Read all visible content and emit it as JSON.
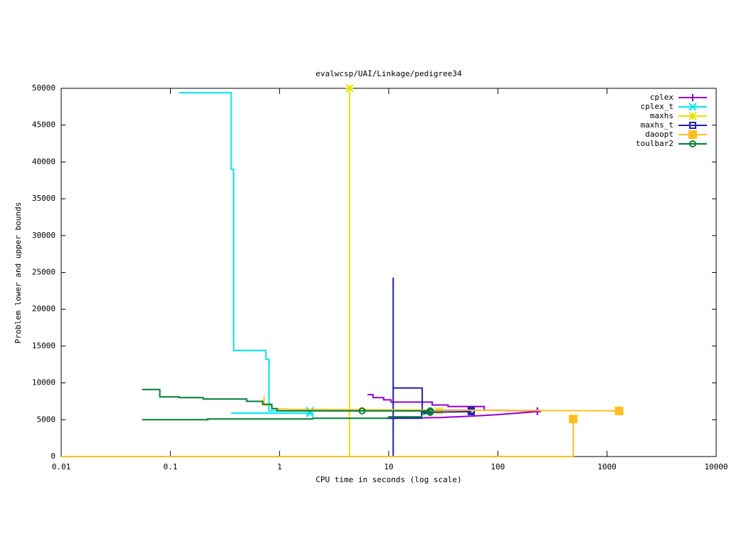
{
  "chart_data": {
    "type": "line",
    "title": "evalwcsp/UAI/Linkage/pedigree34",
    "xlabel": "CPU time in seconds (log scale)",
    "ylabel": "Problem lower and upper bounds",
    "xscale": "log",
    "xlim": [
      0.01,
      10000
    ],
    "xticks": [
      0.01,
      0.1,
      1,
      10,
      100,
      1000,
      10000
    ],
    "ylim": [
      0,
      50000
    ],
    "yticks": [
      0,
      5000,
      10000,
      15000,
      20000,
      25000,
      30000,
      35000,
      40000,
      45000,
      50000
    ],
    "legend": "top-right",
    "series": [
      {
        "name": "cplex",
        "color": "#9400d3",
        "point": "plus",
        "x": [
          6.4,
          6.4,
          7.2,
          7.2,
          9,
          9,
          10.5,
          10.5,
          25,
          25,
          35,
          35,
          75,
          75,
          230,
          null,
          10,
          30,
          60,
          100,
          230
        ],
        "values": [
          8400,
          8400,
          8400,
          8000,
          8000,
          7700,
          7700,
          7400,
          7400,
          7000,
          7000,
          6800,
          6800,
          6300,
          6200,
          null,
          5200,
          5300,
          5500,
          5700,
          6100
        ]
      },
      {
        "name": "cplex_t",
        "color": "#00e5ee",
        "point": "cross",
        "x": [
          0.12,
          0.36,
          0.36,
          0.38,
          0.38,
          0.75,
          0.75,
          0.8,
          0.8,
          1.9,
          null,
          0.36,
          1.9
        ],
        "values": [
          49400,
          49400,
          39000,
          39000,
          14400,
          14400,
          13200,
          13200,
          6200,
          6200,
          null,
          5900,
          5900
        ]
      },
      {
        "name": "maxhs",
        "color": "#e5e500",
        "point": "star",
        "x": [
          4.38,
          4.38,
          null,
          4.38,
          29
        ],
        "values": [
          0,
          50000,
          null,
          6200,
          6200
        ]
      },
      {
        "name": "maxhs_t",
        "color": "#2020b0",
        "point": "square",
        "x": [
          11,
          11,
          11,
          20.3,
          20.3,
          57,
          null,
          9.5,
          20,
          20,
          57
        ],
        "values": [
          0,
          24300,
          9300,
          9300,
          6300,
          6300,
          null,
          5200,
          5200,
          6000,
          6100
        ]
      },
      {
        "name": "daoopt",
        "color": "#ffbf20",
        "point": "filled-square",
        "x": [
          0.01,
          490,
          490,
          null,
          0.72,
          0.72,
          0.85,
          0.85,
          1.3,
          1290
        ],
        "values": [
          0,
          0,
          5100,
          null,
          8200,
          7000,
          7000,
          6500,
          6400,
          6200
        ]
      },
      {
        "name": "toulbar2",
        "color": "#007e3a",
        "point": "circle",
        "x": [
          0.055,
          0.08,
          0.08,
          0.12,
          0.12,
          0.2,
          0.2,
          0.5,
          0.5,
          0.7,
          0.7,
          0.85,
          0.85,
          0.95,
          0.95,
          5.7,
          null,
          5.7,
          24,
          null,
          0.055,
          0.22,
          0.22,
          2,
          2,
          10,
          10,
          20,
          20,
          24
        ],
        "values": [
          9100,
          9100,
          8100,
          8100,
          8000,
          8000,
          7800,
          7800,
          7500,
          7500,
          7100,
          7100,
          6500,
          6500,
          6200,
          6200,
          null,
          6200,
          6200,
          null,
          5000,
          5000,
          5100,
          5100,
          5200,
          5200,
          5400,
          5400,
          5700,
          6000
        ]
      }
    ]
  }
}
